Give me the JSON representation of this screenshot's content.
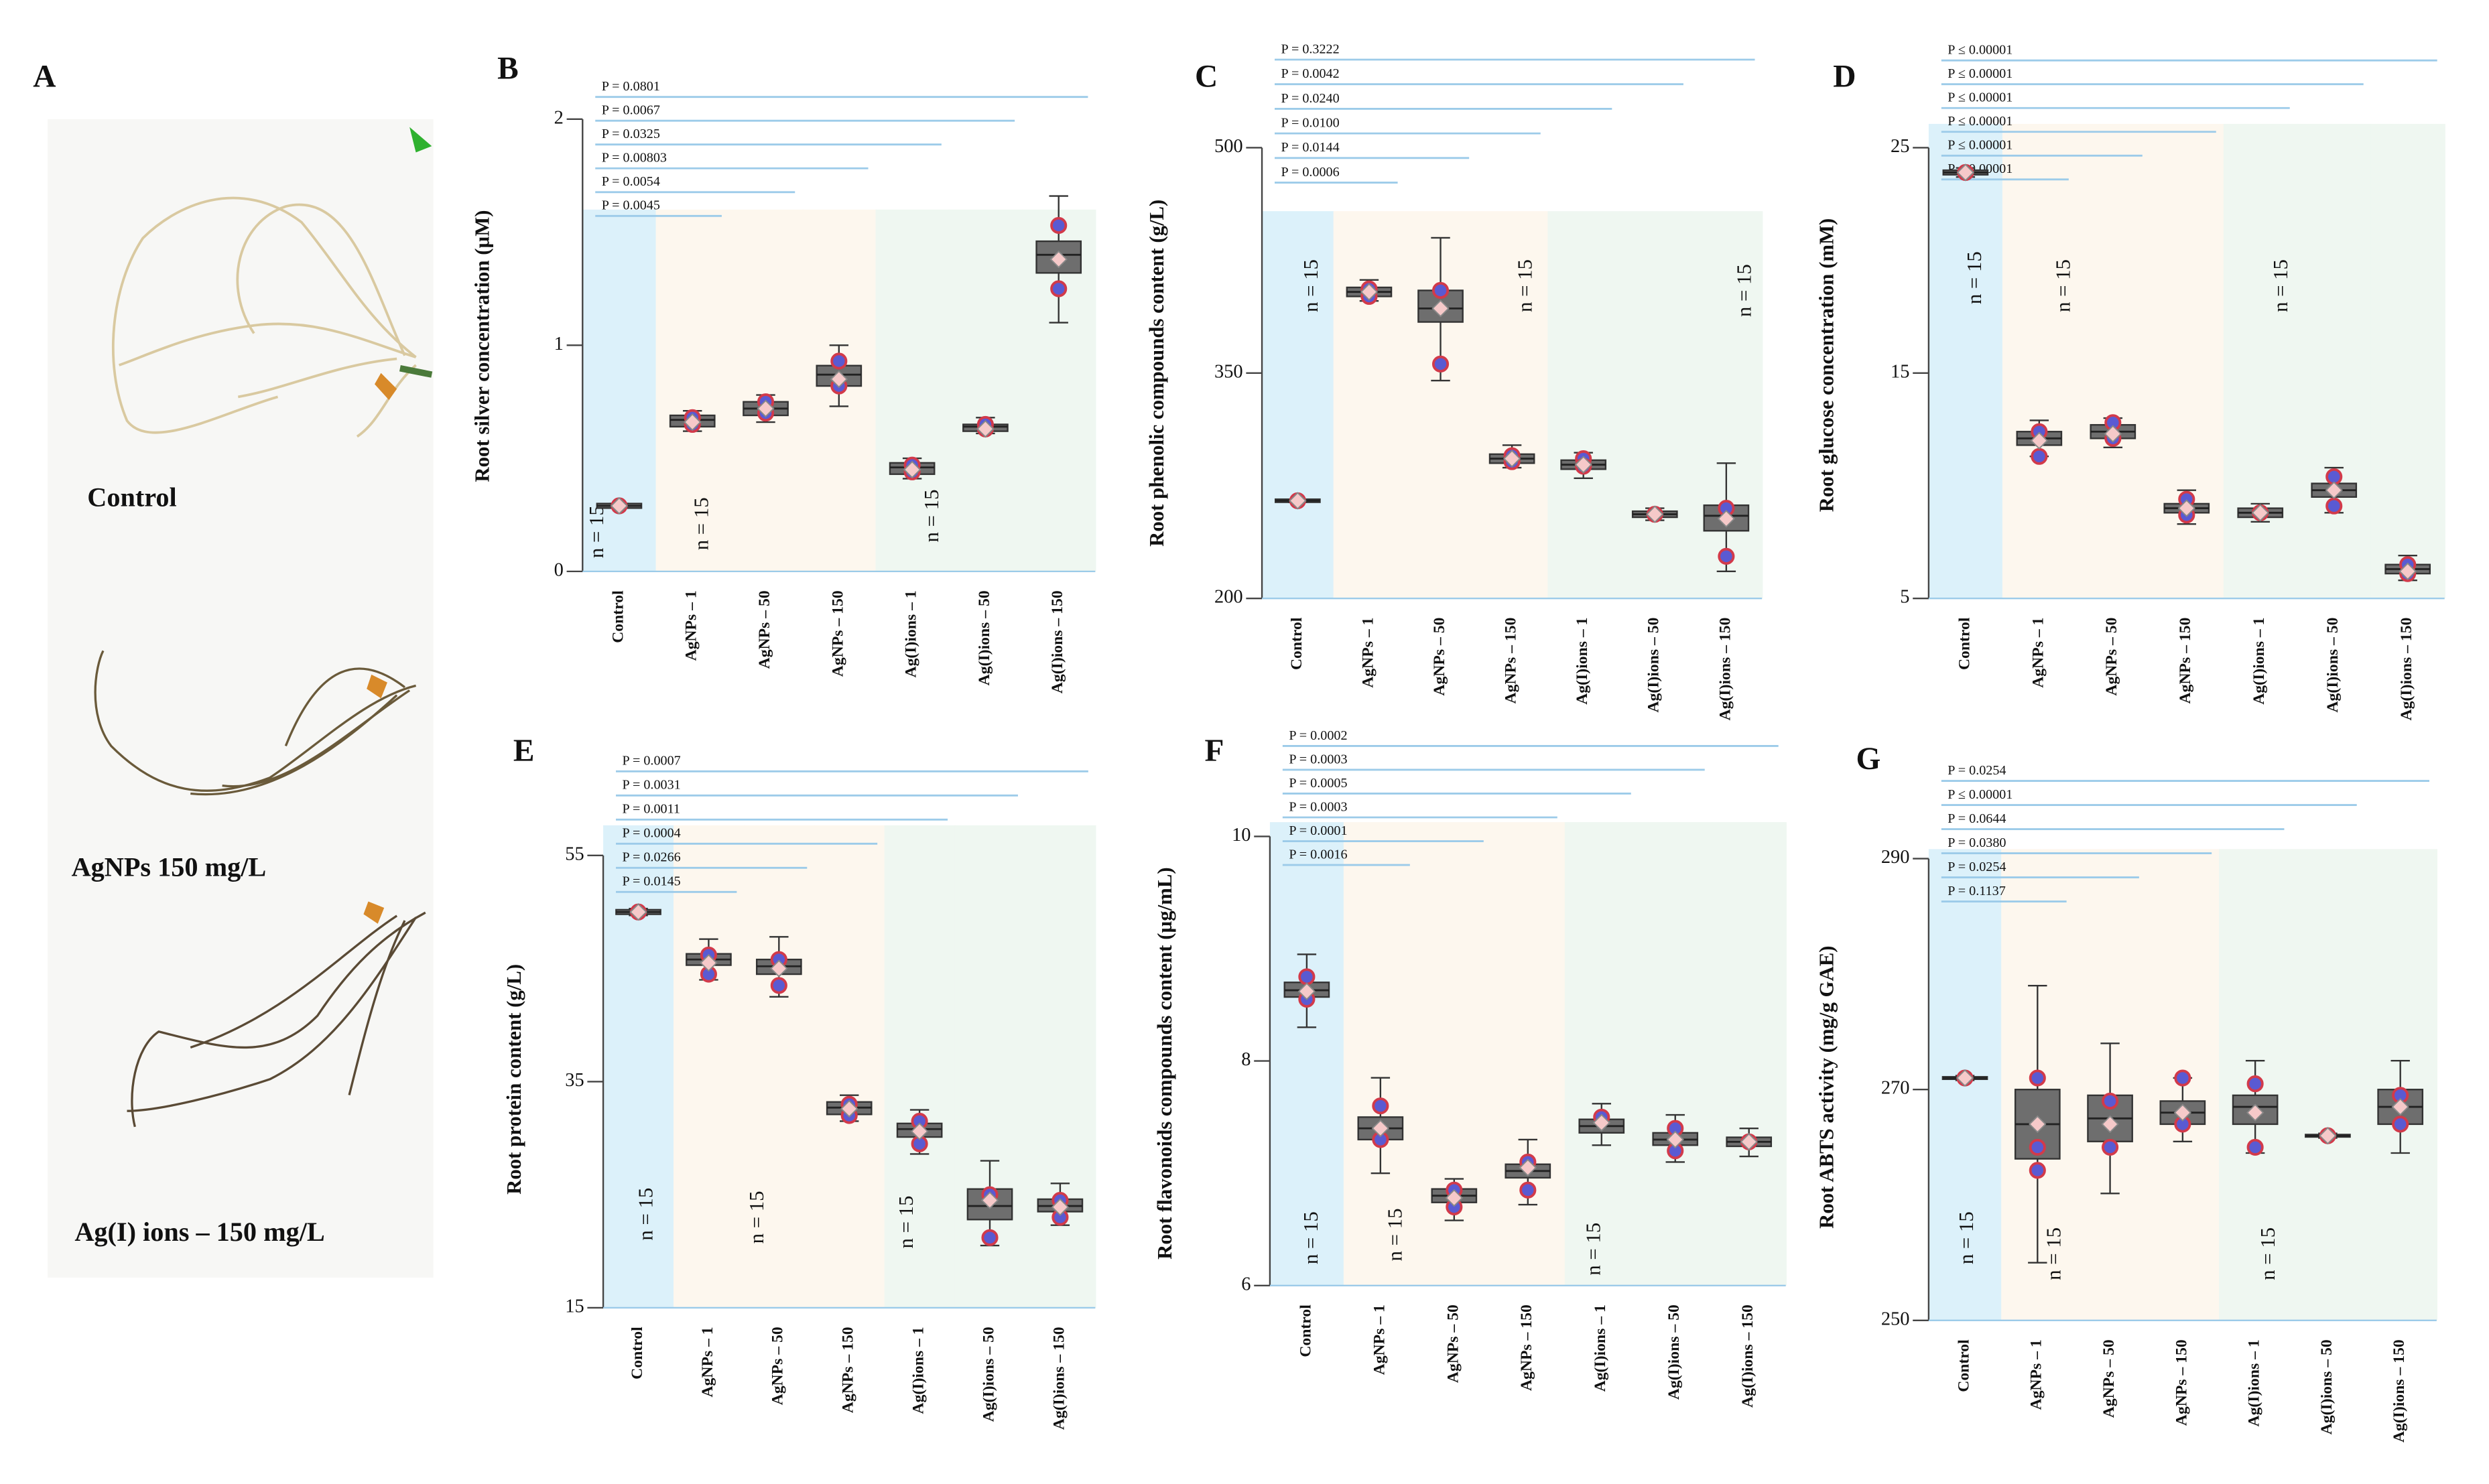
{
  "photo_panel": {
    "label": "A",
    "captions": [
      "Control",
      "AgNPs  150 mg/L",
      "Ag(I) ions – 150 mg/L"
    ]
  },
  "chart_data": [
    {
      "type": "box",
      "panel": "B",
      "ylabel": "Root silver concentration (µM)",
      "categories": [
        "Control",
        "AgNPs – 1",
        "AgNPs – 50",
        "AgNPs – 150",
        "Ag(I)ions – 1",
        "Ag(I)ions – 50",
        "Ag(I)ions – 150"
      ],
      "category_colors": [
        "#dcf1fa",
        "#fdf7ee",
        "#fdf7ee",
        "#fdf7ee",
        "#eff7f1",
        "#eff7f1",
        "#eff7f1"
      ],
      "box_color": "#6e6e6e",
      "mean_color": "#f6c9c9",
      "point_color": "#5a5ad2",
      "point_edge": "#d23a4a",
      "p_line_color": "#9ccbe9",
      "ylim": [
        0,
        2
      ],
      "yticks": [
        0,
        1,
        2
      ],
      "groups": [
        {
          "min": 0.28,
          "q1": 0.28,
          "median": 0.29,
          "q3": 0.3,
          "max": 0.3,
          "mean": 0.29,
          "points": [
            0.29
          ]
        },
        {
          "min": 0.62,
          "q1": 0.64,
          "median": 0.67,
          "q3": 0.69,
          "max": 0.71,
          "mean": 0.66,
          "points": [
            0.65,
            0.68
          ]
        },
        {
          "min": 0.66,
          "q1": 0.69,
          "median": 0.72,
          "q3": 0.75,
          "max": 0.78,
          "mean": 0.72,
          "points": [
            0.7,
            0.75
          ]
        },
        {
          "min": 0.73,
          "q1": 0.82,
          "median": 0.87,
          "q3": 0.91,
          "max": 1.0,
          "mean": 0.85,
          "points": [
            0.82,
            0.93
          ]
        },
        {
          "min": 0.41,
          "q1": 0.43,
          "median": 0.46,
          "q3": 0.48,
          "max": 0.5,
          "mean": 0.45,
          "points": [
            0.44,
            0.47
          ]
        },
        {
          "min": 0.61,
          "q1": 0.62,
          "median": 0.64,
          "q3": 0.65,
          "max": 0.68,
          "mean": 0.63,
          "points": [
            0.63,
            0.65
          ]
        },
        {
          "min": 1.1,
          "q1": 1.32,
          "median": 1.4,
          "q3": 1.46,
          "max": 1.66,
          "mean": 1.38,
          "points": [
            1.53,
            1.25
          ]
        }
      ],
      "p_values": [
        "P = 0.0045",
        "P = 0.0054",
        "P = 0.00803",
        "P = 0.0325",
        "P = 0.0067",
        "P = 0.0801"
      ],
      "n_labels": [
        "n = 15",
        "n = 15",
        "n = 15"
      ]
    },
    {
      "type": "box",
      "panel": "C",
      "ylabel": "Root phenolic compounds content (g/L)",
      "categories": [
        "Control",
        "AgNPs – 1",
        "AgNPs – 50",
        "AgNPs – 150",
        "Ag(I)ions – 1",
        "Ag(I)ions – 50",
        "Ag(I)ions – 150"
      ],
      "category_colors": [
        "#dcf1fa",
        "#fdf7ee",
        "#fdf7ee",
        "#fdf7ee",
        "#eff7f1",
        "#eff7f1",
        "#eff7f1"
      ],
      "box_color": "#6e6e6e",
      "mean_color": "#f6c9c9",
      "point_color": "#5a5ad2",
      "point_edge": "#d23a4a",
      "p_line_color": "#9ccbe9",
      "ylim": [
        200,
        500
      ],
      "yticks": [
        200,
        350,
        500
      ],
      "groups": [
        {
          "min": 264,
          "q1": 264,
          "median": 265,
          "q3": 266,
          "max": 266,
          "mean": 265,
          "points": [
            265
          ]
        },
        {
          "min": 398,
          "q1": 401,
          "median": 404,
          "q3": 407,
          "max": 412,
          "mean": 404,
          "points": [
            401,
            406
          ]
        },
        {
          "min": 345,
          "q1": 384,
          "median": 393,
          "q3": 405,
          "max": 440,
          "mean": 393,
          "points": [
            356,
            405
          ]
        },
        {
          "min": 287,
          "q1": 290,
          "median": 293,
          "q3": 296,
          "max": 302,
          "mean": 293,
          "points": [
            291,
            295
          ]
        },
        {
          "min": 280,
          "q1": 286,
          "median": 289,
          "q3": 292,
          "max": 297,
          "mean": 289,
          "points": [
            293,
            288
          ]
        },
        {
          "min": 252,
          "q1": 254,
          "median": 256,
          "q3": 258,
          "max": 260,
          "mean": 256,
          "points": [
            256
          ]
        },
        {
          "min": 218,
          "q1": 245,
          "median": 255,
          "q3": 262,
          "max": 290,
          "mean": 253,
          "points": [
            228,
            260
          ]
        }
      ],
      "p_values": [
        "P = 0.0006",
        "P = 0.0144",
        "P = 0.0100",
        "P = 0.0240",
        "P = 0.0042",
        "P = 0.3222"
      ],
      "n_labels": [
        "n = 15",
        "n = 15",
        "n = 15"
      ]
    },
    {
      "type": "box",
      "panel": "D",
      "ylabel": "Root glucose concentration (mM)",
      "categories": [
        "Control",
        "AgNPs – 1",
        "AgNPs – 50",
        "AgNPs – 150",
        "Ag(I)ions – 1",
        "Ag(I)ions – 50",
        "Ag(I)ions – 150"
      ],
      "category_colors": [
        "#dcf1fa",
        "#fdf7ee",
        "#fdf7ee",
        "#fdf7ee",
        "#eff7f1",
        "#eff7f1",
        "#eff7f1"
      ],
      "box_color": "#6e6e6e",
      "mean_color": "#f6c9c9",
      "point_color": "#5a5ad2",
      "point_edge": "#d23a4a",
      "p_line_color": "#9ccbe9",
      "ylim": [
        5,
        25
      ],
      "yticks": [
        5,
        15,
        25
      ],
      "groups": [
        {
          "min": 23.7,
          "q1": 23.8,
          "median": 23.9,
          "q3": 24.0,
          "max": 24.1,
          "mean": 23.9,
          "points": [
            23.9
          ]
        },
        {
          "min": 11.3,
          "q1": 11.8,
          "median": 12.1,
          "q3": 12.4,
          "max": 12.9,
          "mean": 12.0,
          "points": [
            11.3,
            12.4
          ]
        },
        {
          "min": 11.7,
          "q1": 12.1,
          "median": 12.4,
          "q3": 12.7,
          "max": 13.0,
          "mean": 12.3,
          "points": [
            12.1,
            12.8
          ]
        },
        {
          "min": 8.3,
          "q1": 8.8,
          "median": 9.0,
          "q3": 9.2,
          "max": 9.8,
          "mean": 9.0,
          "points": [
            8.7,
            9.4
          ]
        },
        {
          "min": 8.4,
          "q1": 8.6,
          "median": 8.8,
          "q3": 9.0,
          "max": 9.2,
          "mean": 8.8,
          "points": [
            8.8
          ]
        },
        {
          "min": 8.8,
          "q1": 9.5,
          "median": 9.8,
          "q3": 10.1,
          "max": 10.8,
          "mean": 9.8,
          "points": [
            9.1,
            10.4
          ]
        },
        {
          "min": 5.8,
          "q1": 6.1,
          "median": 6.3,
          "q3": 6.5,
          "max": 6.9,
          "mean": 6.2,
          "points": [
            6.1,
            6.5
          ]
        }
      ],
      "p_values": [
        "P ≤ 0.00001",
        "P ≤ 0.00001",
        "P ≤ 0.00001",
        "P ≤ 0.00001",
        "P ≤ 0.00001",
        "P ≤ 0.00001"
      ],
      "n_labels": [
        "n = 15",
        "n = 15",
        "n = 15"
      ]
    },
    {
      "type": "box",
      "panel": "E",
      "ylabel": "Root protein content (g/L)",
      "categories": [
        "Control",
        "AgNPs – 1",
        "AgNPs – 50",
        "AgNPs – 150",
        "Ag(I)ions – 1",
        "Ag(I)ions – 50",
        "Ag(I)ions – 150"
      ],
      "category_colors": [
        "#dcf1fa",
        "#fdf7ee",
        "#fdf7ee",
        "#fdf7ee",
        "#eff7f1",
        "#eff7f1",
        "#eff7f1"
      ],
      "box_color": "#6e6e6e",
      "mean_color": "#f6c9c9",
      "point_color": "#5a5ad2",
      "point_edge": "#d23a4a",
      "p_line_color": "#9ccbe9",
      "ylim": [
        15,
        55
      ],
      "yticks": [
        15,
        35,
        55
      ],
      "groups": [
        {
          "min": 49.7,
          "q1": 49.8,
          "median": 50.0,
          "q3": 50.2,
          "max": 50.3,
          "mean": 50.0,
          "points": [
            50.0
          ]
        },
        {
          "min": 44.0,
          "q1": 45.3,
          "median": 45.8,
          "q3": 46.3,
          "max": 47.6,
          "mean": 45.5,
          "points": [
            44.5,
            46.2
          ]
        },
        {
          "min": 42.5,
          "q1": 44.5,
          "median": 45.2,
          "q3": 45.8,
          "max": 47.8,
          "mean": 45.0,
          "points": [
            43.5,
            45.8
          ]
        },
        {
          "min": 31.5,
          "q1": 32.1,
          "median": 32.7,
          "q3": 33.2,
          "max": 33.8,
          "mean": 32.6,
          "points": [
            32.0,
            33.0
          ]
        },
        {
          "min": 28.6,
          "q1": 30.1,
          "median": 30.8,
          "q3": 31.3,
          "max": 32.5,
          "mean": 30.6,
          "points": [
            29.5,
            31.5
          ]
        },
        {
          "min": 20.5,
          "q1": 22.8,
          "median": 24.0,
          "q3": 25.5,
          "max": 28.0,
          "mean": 24.5,
          "points": [
            21.2,
            25.0
          ]
        },
        {
          "min": 22.3,
          "q1": 23.5,
          "median": 24.0,
          "q3": 24.6,
          "max": 26.0,
          "mean": 23.9,
          "points": [
            23.0,
            24.5
          ]
        }
      ],
      "p_values": [
        "P = 0.0145",
        "P = 0.0266",
        "P = 0.0004",
        "P = 0.0011",
        "P = 0.0031",
        "P = 0.0007"
      ],
      "n_labels": [
        "n = 15",
        "n = 15",
        "n = 15"
      ]
    },
    {
      "type": "box",
      "panel": "F",
      "ylabel": "Root flavonoids compounds content (µg/mL)",
      "categories": [
        "Control",
        "AgNPs – 1",
        "AgNPs – 50",
        "AgNPs – 150",
        "Ag(I)ions – 1",
        "Ag(I)ions – 50",
        "Ag(I)ions – 150"
      ],
      "category_colors": [
        "#dcf1fa",
        "#fdf7ee",
        "#fdf7ee",
        "#fdf7ee",
        "#eff7f1",
        "#eff7f1",
        "#eff7f1"
      ],
      "box_color": "#6e6e6e",
      "mean_color": "#f6c9c9",
      "point_color": "#5a5ad2",
      "point_edge": "#d23a4a",
      "p_line_color": "#9ccbe9",
      "ylim": [
        6,
        10
      ],
      "yticks": [
        6,
        8,
        10
      ],
      "groups": [
        {
          "min": 8.3,
          "q1": 8.57,
          "median": 8.63,
          "q3": 8.7,
          "max": 8.95,
          "mean": 8.62,
          "points": [
            8.55,
            8.75
          ]
        },
        {
          "min": 7.0,
          "q1": 7.3,
          "median": 7.4,
          "q3": 7.5,
          "max": 7.85,
          "mean": 7.4,
          "points": [
            7.6,
            7.3
          ]
        },
        {
          "min": 6.58,
          "q1": 6.74,
          "median": 6.8,
          "q3": 6.86,
          "max": 6.95,
          "mean": 6.78,
          "points": [
            6.7,
            6.85
          ]
        },
        {
          "min": 6.72,
          "q1": 6.96,
          "median": 7.02,
          "q3": 7.08,
          "max": 7.3,
          "mean": 7.05,
          "points": [
            6.85,
            7.1
          ]
        },
        {
          "min": 7.25,
          "q1": 7.36,
          "median": 7.42,
          "q3": 7.48,
          "max": 7.62,
          "mean": 7.45,
          "points": [
            7.5
          ]
        },
        {
          "min": 7.1,
          "q1": 7.25,
          "median": 7.3,
          "q3": 7.36,
          "max": 7.52,
          "mean": 7.3,
          "points": [
            7.2,
            7.4
          ]
        },
        {
          "min": 7.15,
          "q1": 7.24,
          "median": 7.28,
          "q3": 7.32,
          "max": 7.4,
          "mean": 7.28,
          "points": [
            7.28
          ]
        }
      ],
      "p_values": [
        "P = 0.0016",
        "P = 0.0001",
        "P = 0.0003",
        "P = 0.0005",
        "P = 0.0003",
        "P = 0.0002"
      ],
      "n_labels": [
        "n = 15",
        "n = 15",
        "n = 15"
      ]
    },
    {
      "type": "box",
      "panel": "G",
      "ylabel": "Root ABTS activity (mg/g GAE)",
      "categories": [
        "Control",
        "AgNPs – 1",
        "AgNPs – 50",
        "AgNPs – 150",
        "Ag(I)ions – 1",
        "Ag(I)ions – 50",
        "Ag(I)ions – 150"
      ],
      "category_colors": [
        "#dcf1fa",
        "#fdf7ee",
        "#fdf7ee",
        "#fdf7ee",
        "#eff7f1",
        "#eff7f1",
        "#eff7f1"
      ],
      "box_color": "#6e6e6e",
      "mean_color": "#f6c9c9",
      "point_color": "#5a5ad2",
      "point_edge": "#d23a4a",
      "p_line_color": "#9ccbe9",
      "ylim": [
        250,
        290
      ],
      "yticks": [
        250,
        270,
        290
      ],
      "groups": [
        {
          "min": 270.8,
          "q1": 270.9,
          "median": 271,
          "q3": 271.1,
          "max": 271.2,
          "mean": 271,
          "points": [
            271
          ]
        },
        {
          "min": 255,
          "q1": 264,
          "median": 267,
          "q3": 270,
          "max": 279,
          "mean": 267,
          "points": [
            263,
            265,
            271
          ]
        },
        {
          "min": 261,
          "q1": 265.5,
          "median": 267.5,
          "q3": 269.5,
          "max": 274,
          "mean": 267,
          "points": [
            265,
            269
          ]
        },
        {
          "min": 265.5,
          "q1": 267,
          "median": 268,
          "q3": 269,
          "max": 271,
          "mean": 268,
          "points": [
            267,
            271
          ]
        },
        {
          "min": 264.5,
          "q1": 267,
          "median": 268.5,
          "q3": 269.5,
          "max": 272.5,
          "mean": 268,
          "points": [
            265,
            270.5
          ]
        },
        {
          "min": 265.8,
          "q1": 265.9,
          "median": 266,
          "q3": 266.1,
          "max": 266.2,
          "mean": 266,
          "points": [
            266
          ]
        },
        {
          "min": 264.5,
          "q1": 267,
          "median": 268.5,
          "q3": 270,
          "max": 272.5,
          "mean": 268.5,
          "points": [
            267,
            269.5
          ]
        }
      ],
      "p_values": [
        "P = 0.1137",
        "P = 0.0254",
        "P = 0.0380",
        "P = 0.0644",
        "P ≤ 0.00001",
        "P = 0.0254"
      ],
      "n_labels": [
        "n = 15",
        "n = 15",
        "n = 15"
      ]
    }
  ]
}
